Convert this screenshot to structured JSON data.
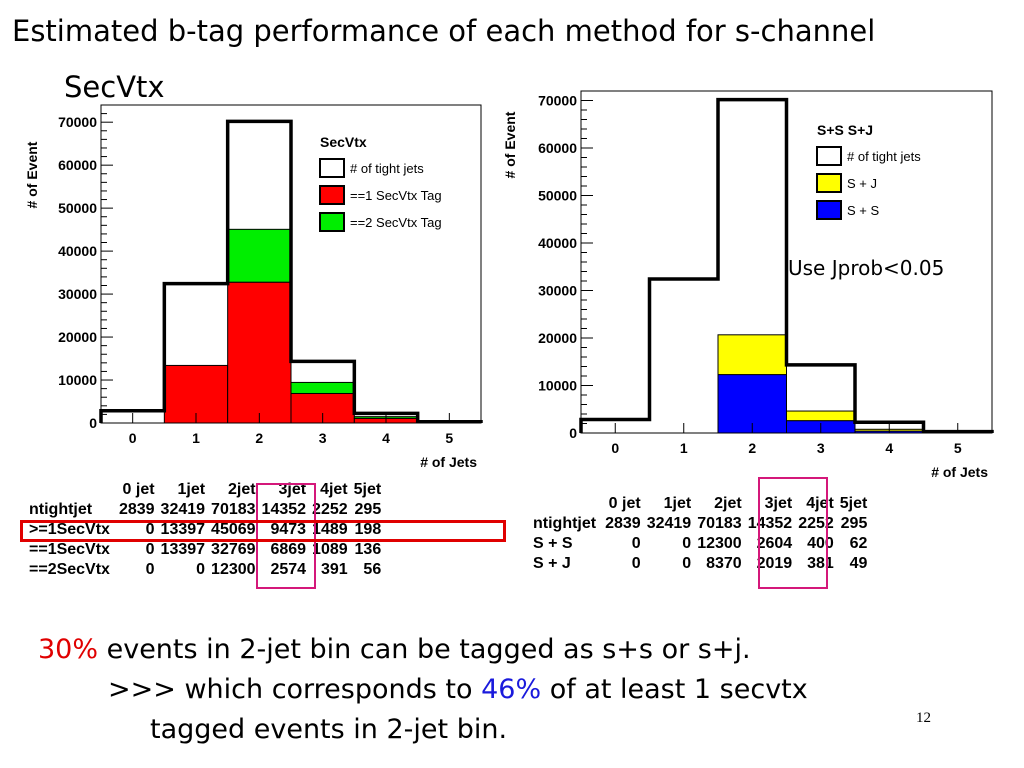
{
  "slide": {
    "title": "Estimated b-tag performance of each method for s-channel",
    "subtitle": "SecVtx",
    "note": "Use Jprob<0.05",
    "page_number": "12",
    "conclusion_pct1": "30%",
    "conclusion_line1": " events in 2-jet bin can be tagged as s+s or s+j.",
    "conclusion_line2_pre": ">>> which corresponds to ",
    "conclusion_pct2": "46%",
    "conclusion_line2_post": " of at least 1 secvtx",
    "conclusion_line3": "tagged events in 2-jet bin.",
    "colors": {
      "red": "#e00000",
      "blue": "#1a1adc",
      "highlight": "#d4187a"
    }
  },
  "chart_data": [
    {
      "type": "bar",
      "xlabel": "# of Jets",
      "ylabel": "# of Event",
      "x_ticks": [
        "0",
        "1",
        "2",
        "3",
        "4",
        "5"
      ],
      "y_ticks": [
        "0",
        "10000",
        "20000",
        "30000",
        "40000",
        "50000",
        "60000",
        "70000"
      ],
      "ylim": [
        0,
        74000
      ],
      "legend_title": "SecVtx",
      "legend_position": "top-right",
      "series": [
        {
          "name": "# of tight jets",
          "values": [
            2839,
            32419,
            70183,
            14352,
            2252,
            295
          ],
          "color": "#ffffff",
          "style": "outline"
        },
        {
          "name": "==1 SecVtx Tag",
          "values": [
            0,
            13397,
            32769,
            6869,
            1089,
            136
          ],
          "color": "#ff0000",
          "style": "fill"
        },
        {
          "name": "==2 SecVtx Tag",
          "values": [
            0,
            0,
            12300,
            2574,
            391,
            56
          ],
          "color": "#00ee00",
          "style": "stacked"
        }
      ]
    },
    {
      "type": "bar",
      "xlabel": "# of Jets",
      "ylabel": "# of Event",
      "x_ticks": [
        "0",
        "1",
        "2",
        "3",
        "4",
        "5"
      ],
      "y_ticks": [
        "0",
        "10000",
        "20000",
        "30000",
        "40000",
        "50000",
        "60000",
        "70000"
      ],
      "ylim": [
        0,
        72000
      ],
      "legend_title": "S+S S+J",
      "legend_position": "top-right",
      "series": [
        {
          "name": "# of tight jets",
          "values": [
            2839,
            32419,
            70183,
            14352,
            2252,
            295
          ],
          "color": "#ffffff",
          "style": "outline"
        },
        {
          "name": "S + J",
          "values": [
            0,
            0,
            8370,
            2019,
            381,
            49
          ],
          "color": "#ffff00",
          "style": "stacked"
        },
        {
          "name": "S + S",
          "values": [
            0,
            0,
            12300,
            2604,
            400,
            62
          ],
          "color": "#0000ff",
          "style": "fill"
        }
      ]
    }
  ],
  "tables": [
    {
      "header": [
        "0 jet",
        "1jet",
        "2jet",
        "3jet",
        "4jet",
        "5jet"
      ],
      "rows": [
        {
          "label": "ntightjet",
          "cells": [
            "2839",
            "32419",
            "70183",
            "14352",
            "2252",
            "295"
          ]
        },
        {
          "label": ">=1SecVtx",
          "cells": [
            "0",
            "13397",
            "45069",
            "9473",
            "1489",
            "198"
          ]
        },
        {
          "label": "==1SecVtx",
          "cells": [
            "0",
            "13397",
            "32769",
            "6869",
            "1089",
            "136"
          ]
        },
        {
          "label": "==2SecVtx",
          "cells": [
            "0",
            "0",
            "12300",
            "2574",
            "391",
            "56"
          ]
        }
      ]
    },
    {
      "header": [
        "0 jet",
        "1jet",
        "2jet",
        "3jet",
        "4jet",
        "5jet"
      ],
      "rows": [
        {
          "label": "ntightjet",
          "cells": [
            "2839",
            "32419",
            "70183",
            "14352",
            "2252",
            "295"
          ]
        },
        {
          "label": "S + S",
          "cells": [
            "0",
            "0",
            "12300",
            "2604",
            "400",
            "62"
          ]
        },
        {
          "label": "S  + J",
          "cells": [
            "0",
            "0",
            "8370",
            "2019",
            "381",
            "49"
          ]
        }
      ]
    }
  ]
}
